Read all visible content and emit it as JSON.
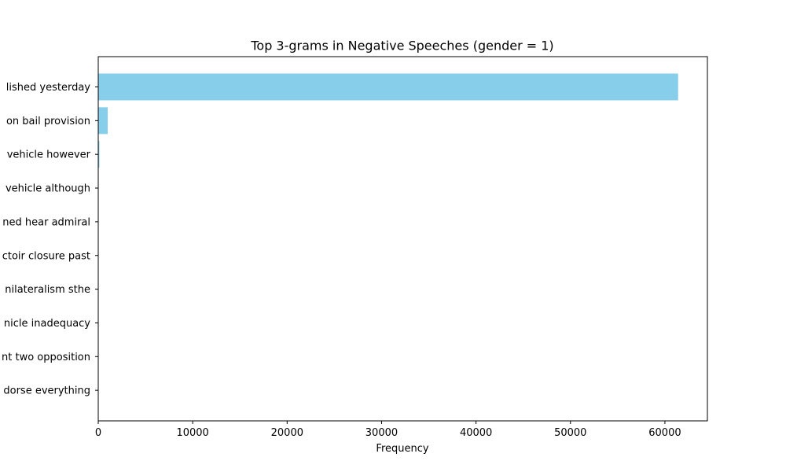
{
  "chart_data": {
    "type": "bar",
    "orientation": "horizontal",
    "title": "Top 3-grams in Negative Speeches (gender = 1)",
    "xlabel": "Frequency",
    "ylabel": "",
    "categories": [
      "lished yesterday",
      "on bail provision",
      "vehicle however",
      "vehicle although",
      "ned hear admiral",
      "ctoir closure past",
      "nilateralism sthe",
      "nicle inadequacy",
      "nt two opposition",
      "dorse everything"
    ],
    "values": [
      61400,
      1000,
      120,
      40,
      30,
      25,
      20,
      15,
      12,
      10
    ],
    "xlim": [
      0,
      64500
    ],
    "xticks": [
      0,
      10000,
      20000,
      30000,
      40000,
      50000,
      60000
    ],
    "grid": false,
    "bar_color": "#87ceeb"
  }
}
